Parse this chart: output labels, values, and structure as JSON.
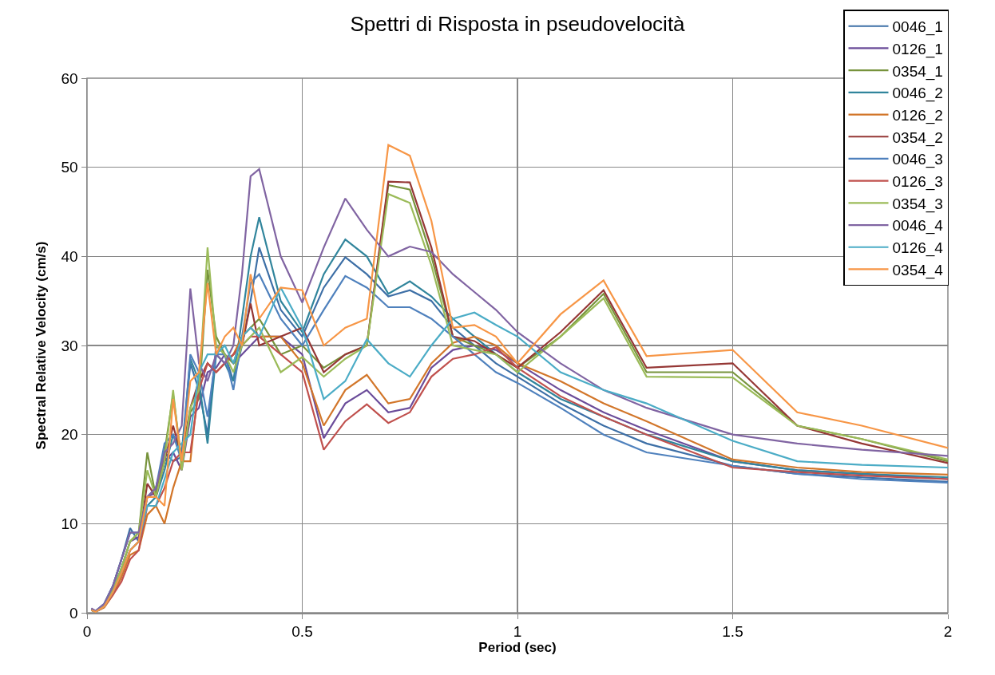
{
  "chart_data": {
    "type": "line",
    "title": "Spettri di Risposta in pseudovelocità",
    "xlabel": "Period (sec)",
    "ylabel": "Spectral Relative Velocity (cm/s)",
    "x": [
      0.01,
      0.02,
      0.04,
      0.06,
      0.08,
      0.1,
      0.12,
      0.14,
      0.16,
      0.18,
      0.2,
      0.22,
      0.24,
      0.26,
      0.28,
      0.3,
      0.32,
      0.34,
      0.36,
      0.38,
      0.4,
      0.45,
      0.5,
      0.55,
      0.6,
      0.65,
      0.7,
      0.75,
      0.8,
      0.85,
      0.9,
      0.95,
      1.0,
      1.1,
      1.2,
      1.3,
      1.5,
      1.65,
      1.8,
      2.0
    ],
    "xlim": [
      0,
      2
    ],
    "xticks": [
      0,
      0.5,
      1,
      1.5,
      2
    ],
    "ylim": [
      0,
      60
    ],
    "yticks": [
      0,
      10,
      20,
      30,
      40,
      50,
      60
    ],
    "grid": true,
    "legend": "top right",
    "line_style": "solid",
    "marker": "none",
    "series": [
      {
        "name": "0046_1",
        "color": "#3d6fa6",
        "values": [
          0.4,
          0.2,
          1,
          3,
          6,
          9.5,
          8,
          13,
          14,
          18,
          17,
          17.5,
          28,
          25,
          20,
          30,
          29,
          26,
          30,
          35,
          41,
          34,
          31,
          36.5,
          39.9,
          38,
          35.5,
          36.2,
          35,
          32,
          30,
          28,
          26.5,
          23.5,
          21,
          19,
          16.5,
          15.6,
          15.2,
          14.7
        ]
      },
      {
        "name": "0126_1",
        "color": "#6b4c9a",
        "values": [
          0.3,
          0.2,
          0.8,
          2.5,
          5,
          8,
          8.5,
          13,
          13.5,
          17,
          18,
          16,
          22,
          23,
          27,
          27.5,
          29,
          28,
          29,
          30,
          31,
          31,
          29,
          19.6,
          23.5,
          25,
          22.5,
          23,
          27.5,
          29.5,
          30,
          29.5,
          28,
          25,
          22.5,
          20.5,
          17,
          16,
          15.6,
          15
        ]
      },
      {
        "name": "0354_1",
        "color": "#77933c",
        "values": [
          0.3,
          0.1,
          0.8,
          2.5,
          5,
          8,
          9,
          18,
          13,
          18,
          24.5,
          17,
          22.5,
          24,
          38.5,
          31,
          29,
          28,
          31,
          32,
          33,
          29,
          30,
          27.5,
          29,
          30,
          48,
          47.5,
          40,
          31,
          30,
          29,
          27.5,
          31,
          35.8,
          27,
          27,
          21,
          19.5,
          17
        ]
      },
      {
        "name": "0046_2",
        "color": "#31859c",
        "values": [
          0.4,
          0.1,
          1,
          3,
          6,
          9,
          9,
          12,
          13,
          16,
          20,
          18,
          28.5,
          26,
          19,
          29,
          28,
          26,
          33,
          40,
          44.4,
          35,
          31.5,
          38,
          41.9,
          40,
          35.8,
          37.2,
          35.5,
          33,
          31,
          29,
          27,
          24,
          22,
          20,
          17,
          16,
          15.6,
          15.2
        ]
      },
      {
        "name": "0126_2",
        "color": "#d2762a",
        "values": [
          0.3,
          0.1,
          0.6,
          2,
          4,
          6.5,
          7,
          11,
          12,
          10,
          14,
          17,
          17,
          26,
          28,
          27,
          28,
          29,
          31,
          32,
          31,
          31,
          28,
          21,
          25,
          26.7,
          23.5,
          24,
          28,
          30.3,
          31,
          30,
          28,
          26,
          23.5,
          21.5,
          17.2,
          16.3,
          15.8,
          15.5
        ]
      },
      {
        "name": "0354_2",
        "color": "#953735",
        "values": [
          0.3,
          0.1,
          0.7,
          2.3,
          4.5,
          7,
          8,
          14.5,
          13,
          17,
          21,
          17.5,
          23,
          26,
          28,
          27,
          28,
          29,
          30,
          34.7,
          30,
          31,
          32,
          27,
          29,
          30,
          48.4,
          48.3,
          41,
          31,
          30.5,
          29,
          27.5,
          31.5,
          36.2,
          27.5,
          28,
          21,
          19,
          16.8
        ]
      },
      {
        "name": "0046_3",
        "color": "#4f81bd",
        "values": [
          0.4,
          0.2,
          1,
          3,
          6,
          9,
          9,
          13,
          14,
          19,
          20,
          17,
          29,
          27,
          22,
          29,
          29,
          25,
          31,
          37,
          38,
          33,
          30,
          34,
          37.8,
          36.5,
          34.3,
          34.3,
          33,
          31,
          29,
          27,
          25.8,
          23,
          20,
          18,
          16.5,
          15.6,
          15,
          14.6
        ]
      },
      {
        "name": "0126_3",
        "color": "#c0504d",
        "values": [
          0.3,
          0.1,
          0.7,
          2,
          3.5,
          6,
          7,
          12,
          12,
          14,
          17,
          18,
          18,
          25,
          28,
          27,
          28,
          29,
          30,
          31,
          31,
          29,
          27,
          18.3,
          21.5,
          23.4,
          21.3,
          22.5,
          26.5,
          28.5,
          29,
          29.8,
          27.5,
          24.3,
          22,
          20,
          16.3,
          15.8,
          15.4,
          15
        ]
      },
      {
        "name": "0354_3",
        "color": "#9bbb59",
        "values": [
          0.3,
          0.1,
          0.8,
          2.5,
          5,
          8,
          9,
          16,
          13,
          17,
          25,
          16,
          23,
          25,
          41,
          30,
          29,
          27,
          30,
          31,
          32,
          27,
          28.7,
          26.5,
          28.5,
          30,
          47,
          46,
          39,
          30,
          29.5,
          29,
          27,
          31,
          35.3,
          26.5,
          26.4,
          21,
          19.5,
          17.2
        ]
      },
      {
        "name": "0046_4",
        "color": "#8064a2",
        "values": [
          0.5,
          0.2,
          1,
          3,
          6,
          9,
          9,
          13,
          14,
          18,
          19,
          21,
          36.4,
          28,
          26,
          29,
          28,
          30,
          38,
          49,
          49.8,
          40,
          34.8,
          41,
          46.5,
          43,
          40,
          41.1,
          40.5,
          38,
          36,
          34,
          31.5,
          28,
          25,
          23,
          20,
          19,
          18.3,
          17.6
        ]
      },
      {
        "name": "0126_4",
        "color": "#4bacc6",
        "values": [
          0.3,
          0.1,
          0.7,
          2.3,
          4.5,
          7,
          8,
          12,
          12,
          15,
          18,
          19,
          20,
          27,
          29,
          29,
          30,
          28,
          31,
          32,
          31,
          36.5,
          32,
          24,
          26,
          30.7,
          28,
          26.5,
          30,
          33,
          33.7,
          32.3,
          31,
          27,
          25,
          23.5,
          19.3,
          17,
          16.6,
          16.3
        ]
      },
      {
        "name": "0354_4",
        "color": "#f79646",
        "values": [
          0.3,
          0.1,
          0.7,
          2.3,
          4.5,
          7,
          8,
          13,
          13,
          12,
          24,
          17,
          26,
          27,
          37,
          29,
          31,
          32,
          30,
          38,
          33,
          36.5,
          36.2,
          30,
          32,
          33,
          52.5,
          51.3,
          44,
          32,
          32.3,
          31,
          28,
          33.5,
          37.3,
          28.8,
          29.5,
          22.5,
          21,
          18.5
        ]
      }
    ]
  }
}
